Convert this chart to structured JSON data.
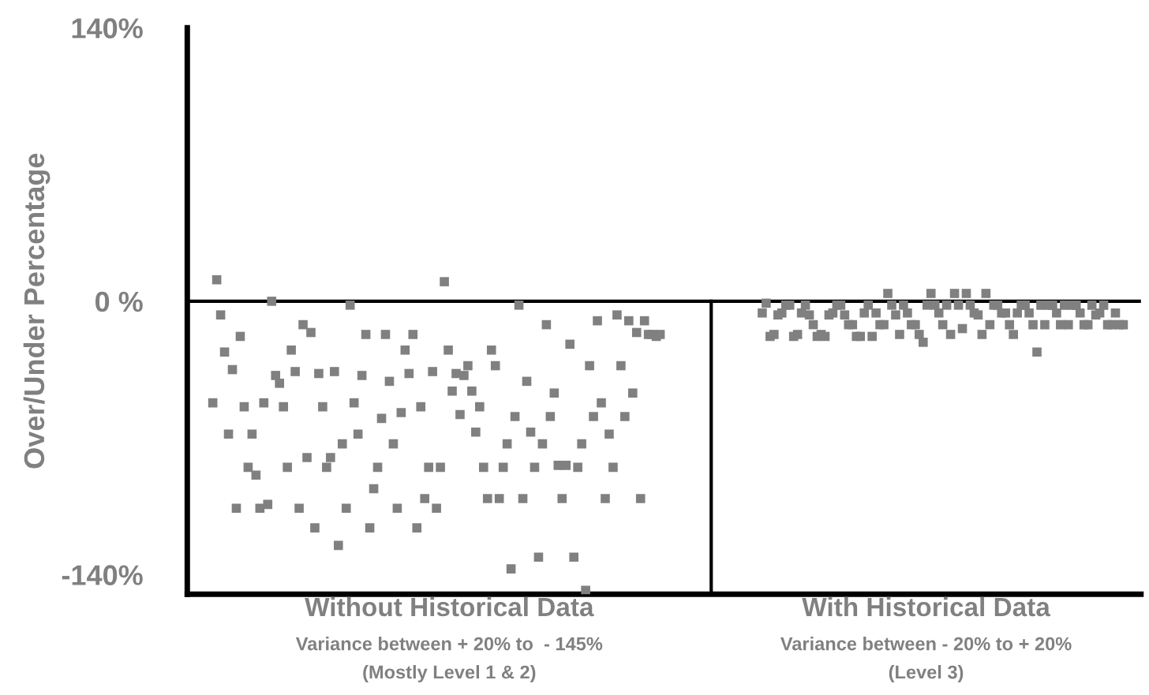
{
  "chart_data": {
    "type": "scatter",
    "ylabel": "Over/Under Percentage",
    "categories": [
      null,
      null,
      null,
      null,
      null,
      null,
      null,
      null,
      null,
      null,
      null,
      null,
      null,
      null,
      null,
      null,
      null,
      null,
      null,
      null,
      null,
      null,
      null,
      null,
      null,
      null,
      null,
      null,
      null,
      null,
      null,
      null,
      null,
      null,
      null,
      null,
      null,
      null,
      null,
      null,
      null,
      null,
      null,
      null,
      null,
      null,
      null,
      null,
      null,
      null,
      null,
      null,
      null,
      null,
      null,
      null,
      null,
      null,
      null,
      null,
      null,
      null,
      null,
      null,
      null,
      null,
      null,
      null,
      null,
      null,
      null,
      null,
      null,
      null,
      null,
      null,
      null,
      null,
      null,
      null,
      null,
      null,
      null,
      null,
      null,
      null,
      null,
      null,
      null,
      null,
      null,
      null,
      null,
      null,
      null,
      null,
      null,
      null,
      null,
      null,
      null,
      null,
      null,
      null,
      null,
      null,
      null,
      null,
      null,
      null,
      null,
      null,
      null,
      null,
      null,
      null,
      null,
      null,
      null,
      null,
      null,
      null,
      null,
      null,
      null,
      null,
      null,
      null,
      null,
      null,
      null,
      null,
      null,
      null,
      null,
      null,
      null,
      null,
      null,
      null,
      null,
      null,
      null,
      null,
      null,
      null,
      null,
      null,
      null,
      null,
      null,
      null,
      null,
      null,
      null,
      null,
      null,
      null,
      null,
      null,
      null,
      null,
      null,
      null,
      null,
      null,
      null,
      null,
      null,
      null,
      null,
      null,
      null,
      null,
      null,
      null,
      null,
      null,
      null,
      null,
      null,
      null,
      null,
      null,
      null,
      null,
      null,
      null,
      null,
      null,
      null,
      null,
      null,
      null,
      null,
      null,
      null,
      null,
      null,
      null,
      null,
      null,
      null,
      null,
      null,
      null,
      null,
      null,
      null,
      null,
      null,
      null,
      null,
      null,
      null,
      null,
      null,
      null,
      null,
      null,
      null,
      null,
      null,
      null,
      null,
      null,
      null,
      null,
      null,
      null,
      null,
      null,
      null,
      null,
      null,
      null,
      null,
      null,
      null,
      null,
      null,
      null,
      null
    ],
    "series": [
      {
        "color": "#808080",
        "values": [
          null,
          null,
          null,
          null,
          null,
          null,
          -52,
          11,
          -7,
          -26,
          -68,
          -35,
          -106,
          -18,
          -54,
          -85,
          -68,
          -89,
          -106,
          -52,
          -104,
          0,
          -38,
          -42,
          -54,
          -85,
          -25,
          -36,
          -106,
          -12,
          -80,
          -16,
          -116,
          -37,
          -54,
          -85,
          -80,
          -36,
          -125,
          -73,
          -106,
          -2,
          -52,
          -68,
          -38,
          -17,
          -116,
          -96,
          -85,
          -60,
          -17,
          -41,
          -73,
          -106,
          -57,
          -25,
          -37,
          -17,
          -116,
          -54,
          -101,
          -85,
          -36,
          -106,
          -85,
          10,
          -25,
          -46,
          -37,
          -58,
          -38,
          -33,
          -46,
          -67,
          -54,
          -85,
          -101,
          -25,
          -33,
          -101,
          -85,
          -73,
          -137,
          -59,
          -2,
          -101,
          -41,
          -67,
          -85,
          -131,
          -73,
          -12,
          -59,
          -47,
          -84,
          -101,
          -84,
          -22,
          -131,
          -85,
          -73,
          -148,
          -33,
          -59,
          -10,
          -52,
          -101,
          -68,
          -85,
          -7,
          -33,
          -59,
          -10,
          -47,
          -16,
          -101,
          -10,
          -17,
          -17,
          -18,
          -17,
          null,
          null,
          null,
          null,
          null,
          null,
          null,
          null,
          null,
          null,
          null,
          null,
          null,
          null,
          null,
          null,
          null,
          null,
          null,
          null,
          null,
          null,
          null,
          null,
          null,
          -6,
          -1,
          -18,
          -17,
          -7,
          -6,
          -2,
          -2,
          -18,
          -17,
          -6,
          -2,
          -7,
          -12,
          -18,
          -17,
          -18,
          -7,
          -6,
          -2,
          -2,
          -7,
          -12,
          -12,
          -18,
          -18,
          -6,
          -2,
          -18,
          -6,
          -12,
          -12,
          4,
          -2,
          -7,
          -17,
          -2,
          -6,
          -12,
          -12,
          -17,
          -21,
          -2,
          4,
          -2,
          -6,
          -12,
          -2,
          -17,
          4,
          -2,
          -14,
          4,
          -2,
          -6,
          -7,
          -17,
          4,
          -12,
          -2,
          -2,
          -6,
          -6,
          -12,
          -17,
          -6,
          -2,
          -2,
          -6,
          -12,
          -26,
          -2,
          -12,
          -2,
          -2,
          -6,
          -12,
          -2,
          -12,
          -2,
          -2,
          -6,
          -12,
          -12,
          -2,
          -7,
          -6,
          -2,
          -12,
          -12,
          -6,
          -12,
          -12,
          null,
          null,
          null,
          null
        ]
      }
    ],
    "marker": "square",
    "ylim": [
      -150,
      140
    ],
    "yticks": [
      {
        "value": 140,
        "label": "140%"
      },
      {
        "value": 0,
        "label": "0 %"
      },
      {
        "value": -140,
        "label": "-140%"
      }
    ],
    "tick_labels": "y",
    "grid": false,
    "ref_lines": [
      {
        "axis": "y",
        "value": 0,
        "color": "#000000"
      }
    ],
    "annotations": [
      "Without Historical Data",
      "Variance between + 20% to  - 145%",
      "(Mostly Level 1 & 2)",
      "With Historical Data",
      "Variance between - 20% to + 20%",
      "(Level 3)"
    ]
  }
}
